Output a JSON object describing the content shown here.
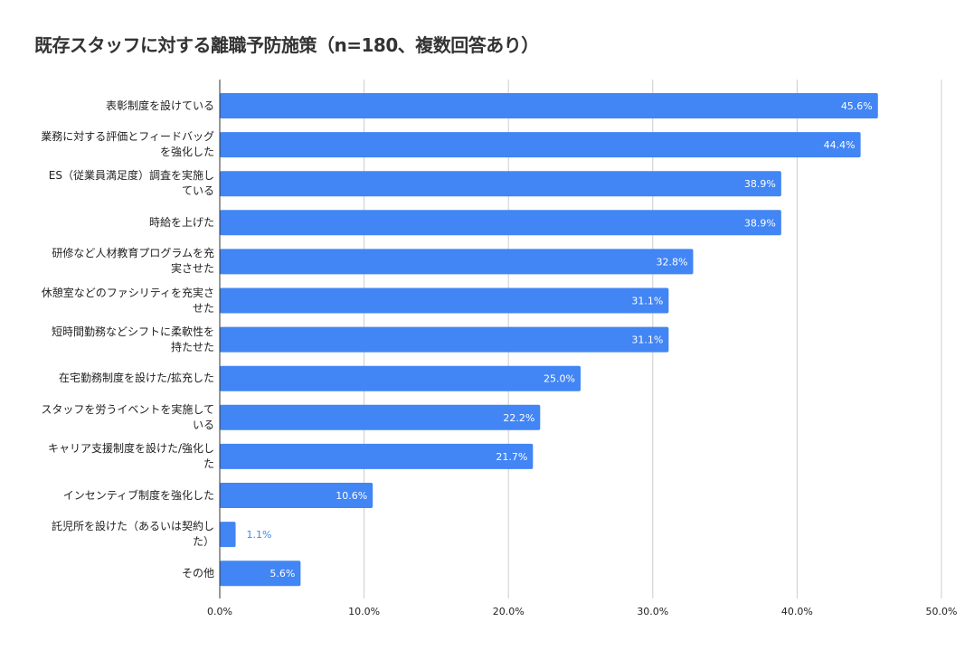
{
  "chart_data": {
    "type": "bar",
    "orientation": "horizontal",
    "title": "既存スタッフに対する離職予防施策（n=180、複数回答あり）",
    "categories": [
      [
        "表彰制度を設けている"
      ],
      [
        "業務に対する評価とフィードバッグ",
        "を強化した"
      ],
      [
        "ES（従業員満足度）調査を実施し",
        "ている"
      ],
      [
        "時給を上げた"
      ],
      [
        "研修など人材教育プログラムを充",
        "実させた"
      ],
      [
        "休憩室などのファシリティを充実さ",
        "せた"
      ],
      [
        "短時間勤務などシフトに柔軟性を",
        "持たせた"
      ],
      [
        "在宅勤務制度を設けた/拡充した"
      ],
      [
        "スタッフを労うイベントを実施して",
        "いる"
      ],
      [
        "キャリア支援制度を設けた/強化し",
        "た"
      ],
      [
        "インセンティブ制度を強化した"
      ],
      [
        "託児所を設けた（あるいは契約し",
        "た）"
      ],
      [
        "その他"
      ]
    ],
    "values": [
      45.6,
      44.4,
      38.9,
      38.9,
      32.8,
      31.1,
      31.1,
      25.0,
      22.2,
      21.7,
      10.6,
      1.1,
      5.6
    ],
    "data_labels": [
      "45.6%",
      "44.4%",
      "38.9%",
      "38.9%",
      "32.8%",
      "31.1%",
      "31.1%",
      "25.0%",
      "22.2%",
      "21.7%",
      "10.6%",
      "1.1%",
      "5.6%"
    ],
    "xlim": [
      0,
      50
    ],
    "ticks": [
      0,
      10,
      20,
      30,
      40,
      50
    ],
    "tick_labels": [
      "0.0%",
      "10.0%",
      "20.0%",
      "30.0%",
      "40.0%",
      "50.0%"
    ],
    "xlabel": "",
    "ylabel": "",
    "grid": true,
    "legend": "none",
    "colors": {
      "bar": "#4285f4",
      "grid": "#cccccc",
      "axis": "#333333",
      "label_inside": "#ffffff",
      "label_outside": "#4285f4"
    }
  }
}
